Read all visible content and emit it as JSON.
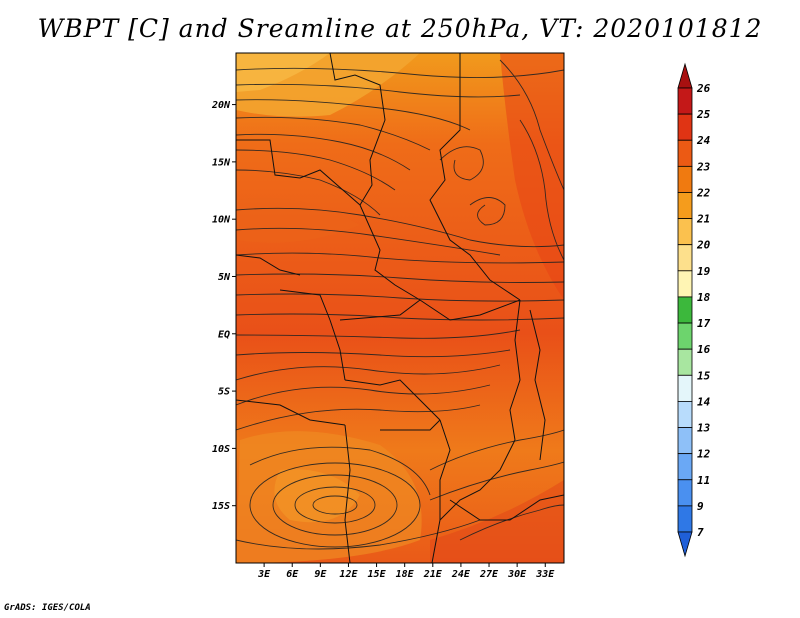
{
  "title": "WBPT [C] and Sreamline at 250hPa, VT: 2020101812",
  "credit": "GrADS: IGES/COLA",
  "map": {
    "lat_labels": [
      "20N",
      "15N",
      "10N",
      "5N",
      "EQ",
      "5S",
      "10S",
      "15S"
    ],
    "lon_labels": [
      "3E",
      "6E",
      "9E",
      "12E",
      "15E",
      "18E",
      "21E",
      "24E",
      "27E",
      "30E",
      "33E"
    ],
    "lat_values": [
      20,
      15,
      10,
      5,
      0,
      -5,
      -10,
      -15
    ],
    "lon_values": [
      3,
      6,
      9,
      12,
      15,
      18,
      21,
      24,
      27,
      30,
      33
    ],
    "lon_range": [
      0,
      35
    ],
    "lat_range": [
      -20,
      24.5
    ]
  },
  "colorbar": {
    "labels": [
      "7",
      "9",
      "11",
      "12",
      "13",
      "14",
      "15",
      "16",
      "17",
      "18",
      "19",
      "20",
      "21",
      "22",
      "23",
      "24",
      "25",
      "26"
    ],
    "colors": [
      "#1f5fd8",
      "#2f78e6",
      "#4a90f0",
      "#6aa8f5",
      "#8ec0f8",
      "#b8dcfc",
      "#e4f6fa",
      "#a8e6a0",
      "#6dd46d",
      "#3cb83c",
      "#fff5b4",
      "#fde08c",
      "#fbc14e",
      "#f59c1c",
      "#f07a10",
      "#ec5a14",
      "#e03414",
      "#c41818",
      "#a81010"
    ]
  }
}
